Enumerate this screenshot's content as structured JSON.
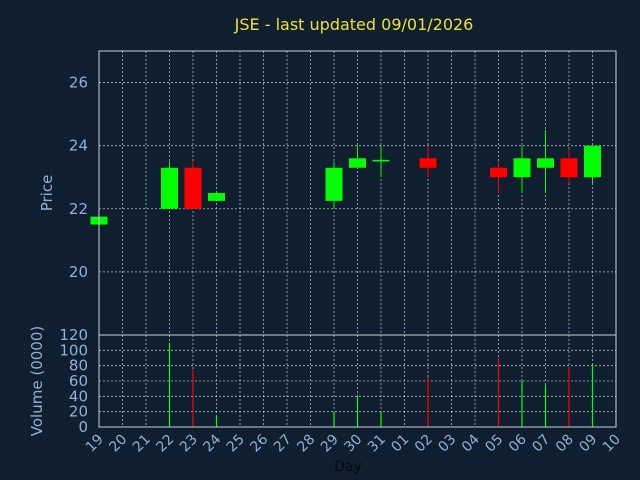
{
  "chart_data": [
    {
      "type": "candlestick",
      "title": "JSE - last updated 09/01/2026",
      "ylabel": "Price",
      "ylim": [
        18.0,
        27.0
      ],
      "yticks": [
        20,
        22,
        24,
        26
      ],
      "grid": true,
      "up_color": "#00ff00",
      "down_color": "#ff0000",
      "categories": [
        "19",
        "20",
        "21",
        "22",
        "23",
        "24",
        "25",
        "26",
        "27",
        "28",
        "29",
        "30",
        "31",
        "01",
        "02",
        "03",
        "04",
        "05",
        "06",
        "07",
        "08",
        "09",
        "10"
      ],
      "candles": [
        {
          "day": "19",
          "open": 21.5,
          "close": 21.75,
          "high": 21.75,
          "low": 21.5
        },
        {
          "day": "22",
          "open": 22.0,
          "close": 23.3,
          "high": 23.5,
          "low": 22.0
        },
        {
          "day": "23",
          "open": 23.3,
          "close": 22.0,
          "high": 23.5,
          "low": 22.0
        },
        {
          "day": "24",
          "open": 22.25,
          "close": 22.5,
          "high": 22.5,
          "low": 22.25
        },
        {
          "day": "29",
          "open": 22.25,
          "close": 23.3,
          "high": 23.5,
          "low": 22.0
        },
        {
          "day": "30",
          "open": 23.3,
          "close": 23.6,
          "high": 24.0,
          "low": 23.3
        },
        {
          "day": "31",
          "open": 23.5,
          "close": 23.55,
          "high": 24.0,
          "low": 23.0
        },
        {
          "day": "02",
          "open": 23.6,
          "close": 23.3,
          "high": 24.0,
          "low": 23.0
        },
        {
          "day": "05",
          "open": 23.3,
          "close": 23.0,
          "high": 23.5,
          "low": 22.5
        },
        {
          "day": "06",
          "open": 23.0,
          "close": 23.6,
          "high": 24.0,
          "low": 22.5
        },
        {
          "day": "07",
          "open": 23.3,
          "close": 23.6,
          "high": 24.5,
          "low": 22.5
        },
        {
          "day": "08",
          "open": 23.6,
          "close": 23.0,
          "high": 23.9,
          "low": 22.8
        },
        {
          "day": "09",
          "open": 23.0,
          "close": 24.0,
          "high": 24.0,
          "low": 22.8
        }
      ]
    },
    {
      "type": "bar",
      "ylabel": "Volume (0000)",
      "xlabel": "Day",
      "ylim": [
        0,
        120
      ],
      "yticks": [
        0,
        20,
        40,
        60,
        80,
        100,
        120
      ],
      "grid": true,
      "categories": [
        "19",
        "20",
        "21",
        "22",
        "23",
        "24",
        "25",
        "26",
        "27",
        "28",
        "29",
        "30",
        "31",
        "01",
        "02",
        "03",
        "04",
        "05",
        "06",
        "07",
        "08",
        "09",
        "10"
      ],
      "bars": [
        {
          "day": "22",
          "value": 110,
          "direction": "up"
        },
        {
          "day": "23",
          "value": 75,
          "direction": "down"
        },
        {
          "day": "24",
          "value": 15,
          "direction": "up"
        },
        {
          "day": "29",
          "value": 20,
          "direction": "up"
        },
        {
          "day": "30",
          "value": 40,
          "direction": "up"
        },
        {
          "day": "31",
          "value": 20,
          "direction": "up"
        },
        {
          "day": "02",
          "value": 65,
          "direction": "down"
        },
        {
          "day": "05",
          "value": 90,
          "direction": "down"
        },
        {
          "day": "06",
          "value": 60,
          "direction": "up"
        },
        {
          "day": "07",
          "value": 55,
          "direction": "up"
        },
        {
          "day": "08",
          "value": 78,
          "direction": "down"
        },
        {
          "day": "09",
          "value": 82,
          "direction": "up"
        }
      ]
    }
  ]
}
